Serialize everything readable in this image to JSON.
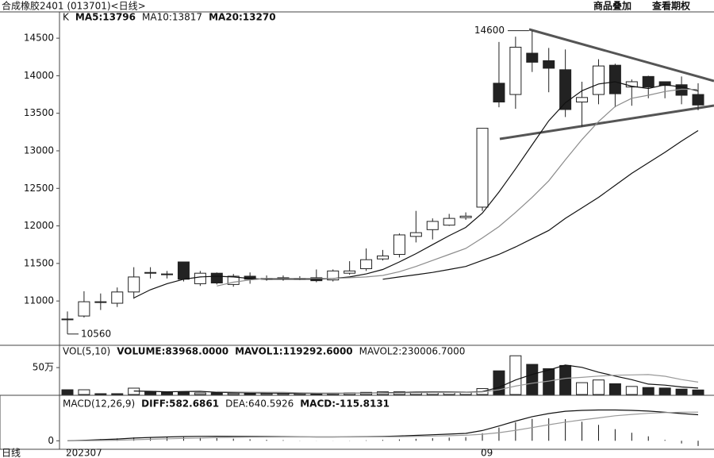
{
  "header": {
    "title": "合成橡胶2401 (013701)<日线>",
    "buttons": [
      "商品叠加",
      "查看期权"
    ],
    "period": "日线"
  },
  "chart_data": [
    {
      "type": "candlestick",
      "label": "K",
      "categories": [
        "202307",
        null,
        null,
        null,
        null,
        null,
        null,
        null,
        null,
        null,
        null,
        null,
        null,
        null,
        null,
        null,
        null,
        null,
        null,
        null,
        null,
        null,
        null,
        null,
        null,
        "09",
        null,
        null,
        null,
        null,
        null,
        null,
        null,
        null,
        null,
        null,
        null,
        null,
        null
      ],
      "open": [
        10760,
        10800,
        10990,
        10970,
        11120,
        11380,
        11360,
        11520,
        11230,
        11370,
        11220,
        11330,
        11300,
        11300,
        11300,
        11310,
        11280,
        11370,
        11430,
        11560,
        11620,
        11860,
        11950,
        12010,
        12110,
        12250,
        13900,
        13750,
        14300,
        14200,
        14080,
        13650,
        13750,
        14140,
        13850,
        13990,
        13920,
        13880,
        13750
      ],
      "high": [
        10860,
        11130,
        11100,
        11180,
        11450,
        11450,
        11400,
        11520,
        11400,
        11380,
        11360,
        11380,
        11340,
        11340,
        11330,
        11420,
        11420,
        11530,
        11700,
        11680,
        11900,
        12200,
        12100,
        12160,
        12180,
        13300,
        14450,
        14520,
        14600,
        14370,
        14350,
        13920,
        14220,
        14160,
        13950,
        14000,
        13920,
        13990,
        13900
      ],
      "low": [
        10560,
        10780,
        10880,
        10920,
        11030,
        11300,
        11300,
        11260,
        11200,
        11220,
        11190,
        11230,
        11270,
        11270,
        11280,
        11250,
        11260,
        11350,
        11400,
        11540,
        11580,
        11780,
        11820,
        12000,
        12080,
        12200,
        13580,
        13560,
        14050,
        13780,
        13450,
        13320,
        13620,
        13580,
        13600,
        13700,
        13700,
        13620,
        13540
      ],
      "close": [
        10750,
        10990,
        10980,
        11120,
        11320,
        11370,
        11350,
        11290,
        11370,
        11240,
        11330,
        11290,
        11300,
        11310,
        11300,
        11270,
        11400,
        11400,
        11550,
        11600,
        11880,
        11910,
        12060,
        12100,
        12130,
        13300,
        13650,
        14380,
        14180,
        14100,
        13550,
        13710,
        14130,
        13760,
        13920,
        13850,
        13870,
        13740,
        13610
      ],
      "up_color": "#ffffff",
      "down_color": "#222222",
      "series": [
        {
          "name": "MA5:13796",
          "color": "#111111",
          "values": [
            null,
            null,
            null,
            null,
            11040,
            11150,
            11230,
            11290,
            11320,
            11330,
            11320,
            11300,
            11290,
            11290,
            11290,
            11290,
            11300,
            11320,
            11360,
            11420,
            11520,
            11630,
            11750,
            11870,
            11980,
            12170,
            12450,
            12760,
            13080,
            13400,
            13640,
            13800,
            13890,
            13920,
            13860,
            13830,
            13880,
            13850,
            13796
          ]
        },
        {
          "name": "MA10:13817",
          "color": "#8c8c8c",
          "values": [
            null,
            null,
            null,
            null,
            null,
            null,
            null,
            null,
            null,
            11200,
            11250,
            11280,
            11300,
            11300,
            11300,
            11300,
            11300,
            11310,
            11320,
            11340,
            11390,
            11460,
            11540,
            11620,
            11700,
            11840,
            11990,
            12180,
            12380,
            12600,
            12880,
            13150,
            13390,
            13590,
            13700,
            13740,
            13790,
            13820,
            13817
          ]
        },
        {
          "name": "MA20:13270",
          "color": "#111111",
          "values": [
            null,
            null,
            null,
            null,
            null,
            null,
            null,
            null,
            null,
            null,
            null,
            null,
            null,
            null,
            null,
            null,
            null,
            null,
            null,
            11290,
            11320,
            11350,
            11380,
            11420,
            11460,
            11540,
            11620,
            11720,
            11830,
            11940,
            12100,
            12240,
            12380,
            12540,
            12700,
            12840,
            12980,
            13130,
            13270
          ]
        }
      ],
      "ylim": [
        10410,
        14850
      ],
      "yticks": [
        11000,
        11500,
        12000,
        12500,
        13000,
        13500,
        14000,
        14500
      ]
    },
    {
      "type": "bar",
      "label": "VOL(5,10)",
      "series": [
        {
          "name": "VOLUME:83968.0000",
          "type": "bar",
          "color": "#222222",
          "values": [
            88000,
            88000,
            15000,
            15000,
            118000,
            59000,
            44000,
            44000,
            30000,
            30000,
            25000,
            25000,
            20000,
            20000,
            20000,
            20000,
            25000,
            30000,
            40000,
            50000,
            50000,
            45000,
            40000,
            40000,
            40000,
            110000,
            440000,
            720000,
            560000,
            480000,
            540000,
            220000,
            270000,
            200000,
            150000,
            130000,
            120000,
            100000,
            83968
          ]
        },
        {
          "name": "MAVOL1:119292.6000",
          "type": "line",
          "color": "#111111",
          "values": [
            null,
            null,
            null,
            null,
            65000,
            59000,
            50000,
            56000,
            59000,
            41000,
            35000,
            31000,
            26000,
            24000,
            22000,
            20000,
            21000,
            23000,
            27000,
            33000,
            39000,
            44000,
            45000,
            45000,
            43000,
            55000,
            134000,
            270000,
            374000,
            454000,
            548000,
            504000,
            414000,
            342000,
            276000,
            194000,
            174000,
            140000,
            119292.6
          ]
        },
        {
          "name": "MAVOL2:230006.7000",
          "type": "line",
          "color": "#9a9a9a",
          "values": [
            null,
            null,
            null,
            null,
            null,
            null,
            null,
            null,
            null,
            53000,
            47000,
            43000,
            41000,
            42000,
            32000,
            28000,
            26000,
            25000,
            25000,
            27000,
            30000,
            33000,
            35000,
            37000,
            38000,
            47000,
            89000,
            157000,
            209000,
            249000,
            301000,
            319000,
            342000,
            358000,
            365000,
            371000,
            339000,
            277000,
            230006.7
          ]
        }
      ],
      "up_color": "#ffffff",
      "down_color": "#222222",
      "ylim": [
        0,
        900000
      ],
      "yticks": [
        {
          "value": 500000,
          "label": "50万"
        }
      ]
    },
    {
      "type": "line",
      "label": "MACD(12,26,9)",
      "series": [
        {
          "name": "DIFF:582.6861",
          "type": "line",
          "color": "#111111",
          "values": [
            0,
            10,
            25,
            40,
            60,
            75,
            85,
            95,
            100,
            102,
            100,
            98,
            95,
            92,
            88,
            85,
            85,
            88,
            92,
            98,
            108,
            120,
            135,
            150,
            165,
            230,
            330,
            440,
            540,
            610,
            660,
            680,
            690,
            690,
            680,
            665,
            640,
            610,
            582.6861
          ]
        },
        {
          "name": "DEA:640.5926",
          "type": "line",
          "color": "#9a9a9a",
          "values": [
            0,
            2,
            7,
            13,
            23,
            33,
            44,
            54,
            63,
            71,
            77,
            81,
            84,
            85,
            86,
            86,
            86,
            86,
            87,
            89,
            93,
            98,
            106,
            114,
            124,
            145,
            182,
            234,
            295,
            358,
            418,
            467,
            512,
            560,
            590,
            615,
            630,
            640,
            640.5926
          ]
        },
        {
          "name": "MACD:-115.8131",
          "type": "bar",
          "color": "#111111",
          "values": [
            0,
            16,
            36,
            54,
            74,
            84,
            82,
            82,
            74,
            62,
            46,
            34,
            22,
            14,
            4,
            -2,
            -2,
            4,
            10,
            18,
            30,
            44,
            58,
            72,
            82,
            170,
            296,
            412,
            490,
            504,
            484,
            426,
            356,
            260,
            180,
            100,
            20,
            -60,
            -115.8131
          ]
        }
      ],
      "ylim": [
        -190,
        1000
      ],
      "yticks": [
        0
      ]
    }
  ]
}
